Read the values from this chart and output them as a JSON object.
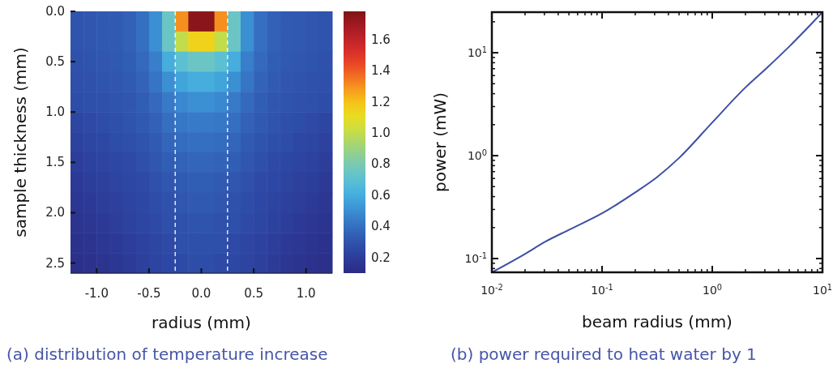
{
  "chart_data": [
    {
      "type": "heatmap",
      "xlabel": "radius (mm)",
      "ylabel": "sample thickness (mm)",
      "xlim": [
        -1.25,
        1.25
      ],
      "ylim": [
        2.6,
        0
      ],
      "xticks": [
        {
          "value": -1,
          "label": "-1.0"
        },
        -0.5,
        {
          "value": 0,
          "label": "0.0"
        },
        0.5,
        {
          "value": 1,
          "label": "1.0"
        }
      ],
      "yticks": [
        {
          "value": 0,
          "label": "0.0"
        },
        0.5,
        {
          "value": 1,
          "label": "1.0"
        },
        1.5,
        {
          "value": 2,
          "label": "2.0"
        },
        2.5
      ],
      "clim": [
        0.1,
        1.78
      ],
      "cticks": [
        0.2,
        0.4,
        0.6,
        0.8,
        {
          "value": 1,
          "label": "1.0"
        },
        1.2,
        1.4,
        1.6
      ],
      "cells": [
        [
          0.3,
          0.31,
          0.32,
          0.33,
          0.35,
          0.4,
          0.5,
          0.75,
          1.3,
          1.75,
          1.75,
          1.3,
          0.75,
          0.5,
          0.4,
          0.35,
          0.33,
          0.32,
          0.31,
          0.3
        ],
        [
          0.3,
          0.31,
          0.32,
          0.33,
          0.35,
          0.4,
          0.5,
          0.75,
          1.0,
          1.15,
          1.15,
          1.0,
          0.75,
          0.5,
          0.4,
          0.35,
          0.33,
          0.32,
          0.31,
          0.3
        ],
        [
          0.29,
          0.3,
          0.31,
          0.32,
          0.34,
          0.38,
          0.45,
          0.6,
          0.7,
          0.75,
          0.75,
          0.7,
          0.6,
          0.45,
          0.38,
          0.34,
          0.32,
          0.31,
          0.3,
          0.29
        ],
        [
          0.28,
          0.29,
          0.3,
          0.31,
          0.33,
          0.36,
          0.42,
          0.5,
          0.57,
          0.6,
          0.6,
          0.57,
          0.5,
          0.42,
          0.36,
          0.33,
          0.31,
          0.3,
          0.29,
          0.28
        ],
        [
          0.27,
          0.28,
          0.29,
          0.3,
          0.31,
          0.34,
          0.38,
          0.44,
          0.48,
          0.5,
          0.5,
          0.48,
          0.44,
          0.38,
          0.34,
          0.31,
          0.3,
          0.29,
          0.28,
          0.27
        ],
        [
          0.24,
          0.26,
          0.27,
          0.28,
          0.3,
          0.32,
          0.35,
          0.4,
          0.43,
          0.44,
          0.44,
          0.43,
          0.4,
          0.35,
          0.32,
          0.3,
          0.28,
          0.27,
          0.26,
          0.24
        ],
        [
          0.22,
          0.24,
          0.25,
          0.27,
          0.28,
          0.3,
          0.33,
          0.37,
          0.39,
          0.4,
          0.4,
          0.39,
          0.37,
          0.33,
          0.3,
          0.28,
          0.27,
          0.25,
          0.24,
          0.22
        ],
        [
          0.2,
          0.22,
          0.23,
          0.25,
          0.26,
          0.28,
          0.31,
          0.34,
          0.36,
          0.37,
          0.37,
          0.36,
          0.34,
          0.31,
          0.28,
          0.26,
          0.25,
          0.23,
          0.22,
          0.2
        ],
        [
          0.18,
          0.2,
          0.21,
          0.23,
          0.25,
          0.26,
          0.29,
          0.31,
          0.33,
          0.34,
          0.34,
          0.33,
          0.31,
          0.29,
          0.26,
          0.25,
          0.23,
          0.21,
          0.2,
          0.18
        ],
        [
          0.17,
          0.18,
          0.2,
          0.21,
          0.23,
          0.25,
          0.27,
          0.29,
          0.31,
          0.32,
          0.32,
          0.31,
          0.29,
          0.27,
          0.25,
          0.23,
          0.21,
          0.2,
          0.18,
          0.17
        ],
        [
          0.15,
          0.17,
          0.18,
          0.2,
          0.22,
          0.24,
          0.26,
          0.28,
          0.29,
          0.3,
          0.3,
          0.29,
          0.28,
          0.26,
          0.24,
          0.22,
          0.2,
          0.18,
          0.17,
          0.15
        ],
        [
          0.14,
          0.15,
          0.17,
          0.18,
          0.2,
          0.22,
          0.24,
          0.26,
          0.28,
          0.28,
          0.28,
          0.28,
          0.26,
          0.24,
          0.22,
          0.2,
          0.18,
          0.17,
          0.15,
          0.14
        ],
        [
          0.13,
          0.14,
          0.15,
          0.17,
          0.19,
          0.21,
          0.23,
          0.25,
          0.26,
          0.27,
          0.27,
          0.26,
          0.25,
          0.23,
          0.21,
          0.19,
          0.17,
          0.15,
          0.14,
          0.13
        ]
      ],
      "ref_lines": [
        {
          "axis": "x",
          "value": -0.25,
          "color": "#ffffff",
          "line_style": "dashed"
        },
        {
          "axis": "x",
          "value": 0.25,
          "color": "#ffffff",
          "line_style": "dashed"
        }
      ],
      "annotations": [
        "(a) distribution of temperature increase"
      ]
    },
    {
      "type": "line",
      "xlabel": "beam radius (mm)",
      "ylabel": "power (mW)",
      "log": "xy",
      "line_style": "solid",
      "xlim": [
        0.01,
        10
      ],
      "ylim": [
        0.0735,
        24.8
      ],
      "xticks": [
        {
          "value": 0.01,
          "label": "10$^{-2}$"
        },
        {
          "value": 0.1,
          "label": "10$^{-1}$"
        },
        {
          "value": 1,
          "label": "10$^{0}$"
        },
        {
          "value": 10,
          "label": "10$^{1}$"
        }
      ],
      "yticks": [
        {
          "value": 0.1,
          "label": "10$^{-1}$"
        },
        {
          "value": 1,
          "label": "10$^{0}$"
        },
        {
          "value": 10,
          "label": "10$^{1}$"
        }
      ],
      "x": [
        0.01,
        0.02,
        0.0306,
        0.05,
        0.1,
        0.2,
        0.316,
        0.5,
        1,
        2,
        3.16,
        5,
        10
      ],
      "series": [
        {
          "color": "#3c4fa5",
          "values": [
            0.0735,
            0.111,
            0.146,
            0.19,
            0.275,
            0.44,
            0.62,
            0.95,
            2.1,
            4.6,
            7.2,
            11.5,
            24.8
          ]
        }
      ],
      "annotations": [
        "(b) power required to heat water by 1"
      ]
    }
  ]
}
